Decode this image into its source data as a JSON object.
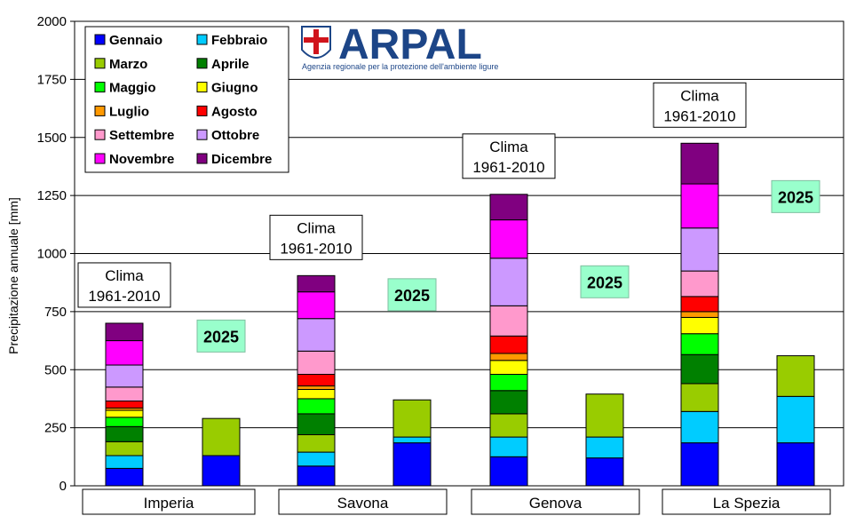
{
  "chart_data": {
    "type": "bar",
    "stacked": true,
    "ylabel": "Precipitazione annuale [mm]",
    "ylim": [
      0,
      2000
    ],
    "yticks": [
      0,
      250,
      500,
      750,
      1000,
      1250,
      1500,
      1750,
      2000
    ],
    "grid": true,
    "legend_position": "top-left",
    "categories": [
      "Imperia",
      "Savona",
      "Genova",
      "La Spezia"
    ],
    "series": [
      {
        "name": "Gennaio",
        "color": "#0000ff"
      },
      {
        "name": "Febbraio",
        "color": "#00ccff"
      },
      {
        "name": "Marzo",
        "color": "#99cc00"
      },
      {
        "name": "Aprile",
        "color": "#008000"
      },
      {
        "name": "Maggio",
        "color": "#00ff00"
      },
      {
        "name": "Giugno",
        "color": "#ffff00"
      },
      {
        "name": "Luglio",
        "color": "#ff9900"
      },
      {
        "name": "Agosto",
        "color": "#ff0000"
      },
      {
        "name": "Settembre",
        "color": "#ff99cc"
      },
      {
        "name": "Ottobre",
        "color": "#cc99ff"
      },
      {
        "name": "Novembre",
        "color": "#ff00ff"
      },
      {
        "name": "Dicembre",
        "color": "#800080"
      }
    ],
    "bars": [
      {
        "category": "Imperia",
        "group": "clima",
        "label_line1": "Clima",
        "label_line2": "1961-2010",
        "values": [
          75,
          55,
          60,
          65,
          40,
          30,
          10,
          30,
          60,
          95,
          105,
          75
        ]
      },
      {
        "category": "Imperia",
        "group": "2025",
        "label": "2025",
        "values": [
          130,
          0,
          10,
          0,
          0,
          0,
          0,
          0,
          0,
          0,
          0,
          0
        ]
      },
      {
        "category": "Imperia",
        "group": "2025_marzo_top",
        "values": [
          0,
          0,
          150,
          0,
          0,
          0,
          0,
          0,
          0,
          0,
          0,
          0
        ]
      },
      {
        "category": "Savona",
        "group": "clima",
        "label_line1": "Clima",
        "label_line2": "1961-2010",
        "values": [
          85,
          60,
          75,
          90,
          65,
          40,
          15,
          50,
          100,
          140,
          115,
          70
        ]
      },
      {
        "category": "Savona",
        "group": "2025",
        "label": "2025",
        "values": [
          185,
          25,
          160,
          0,
          0,
          0,
          0,
          0,
          0,
          0,
          0,
          0
        ]
      },
      {
        "category": "Genova",
        "group": "clima",
        "label_line1": "Clima",
        "label_line2": "1961-2010",
        "values": [
          125,
          85,
          100,
          100,
          70,
          60,
          30,
          75,
          130,
          205,
          165,
          110
        ]
      },
      {
        "category": "Genova",
        "group": "2025",
        "label": "2025",
        "values": [
          120,
          90,
          185,
          0,
          0,
          0,
          0,
          0,
          0,
          0,
          0,
          0
        ]
      },
      {
        "category": "La Spezia",
        "group": "clima",
        "label_line1": "Clima",
        "label_line2": "1961-2010",
        "values": [
          185,
          135,
          120,
          125,
          90,
          70,
          25,
          65,
          110,
          185,
          190,
          175
        ]
      },
      {
        "category": "La Spezia",
        "group": "2025",
        "label": "2025",
        "values": [
          185,
          200,
          175,
          0,
          0,
          0,
          0,
          0,
          0,
          0,
          0,
          0
        ]
      }
    ]
  },
  "logo": {
    "title": "ARPAL",
    "subtitle": "Agenzia regionale per la protezione dell'ambiente ligure"
  }
}
